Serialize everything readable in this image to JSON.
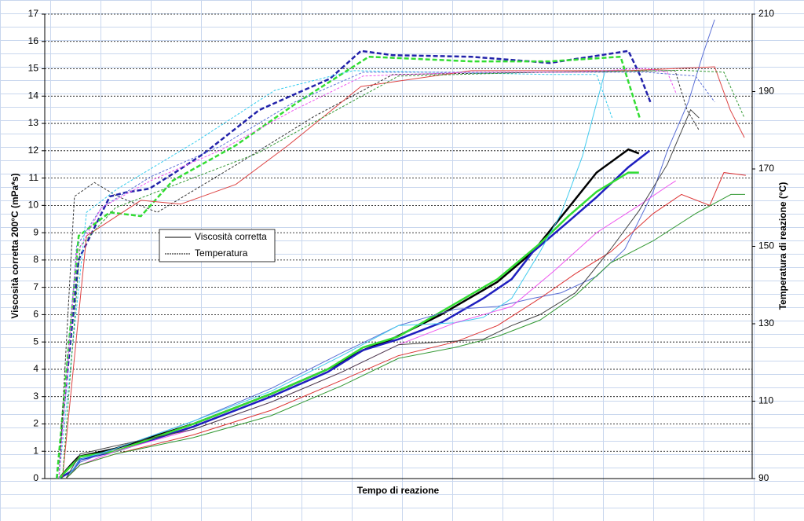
{
  "chart_data": {
    "type": "line",
    "x_label": "Tempo di reazione",
    "y_label": "Viscosità corretta 200°C (mPa*s)",
    "y2_label": "Temperatura di reazione (°C)",
    "xlim": [
      0,
      100
    ],
    "ylim": [
      0,
      17
    ],
    "yticks": [
      0,
      1,
      2,
      3,
      4,
      5,
      6,
      7,
      8,
      9,
      10,
      11,
      12,
      13,
      14,
      15,
      16,
      17
    ],
    "y2lim": [
      90,
      210
    ],
    "y2ticks": [
      90,
      110,
      130,
      150,
      170,
      190,
      210
    ],
    "grid": true,
    "legend": [
      {
        "label": "Viscosità corretta",
        "dash": false
      },
      {
        "label": "Temperatura",
        "dash": true
      }
    ],
    "series": [
      {
        "color": "#000000",
        "width": 2.5,
        "dash": false,
        "x": [
          2,
          3.7,
          4.8,
          10,
          21,
          32,
          40,
          45,
          49,
          56,
          64,
          69,
          74,
          78,
          82.5,
          84
        ],
        "values": [
          0,
          0.5,
          0.8,
          1.1,
          2.0,
          3.1,
          4.0,
          4.7,
          5.1,
          6.0,
          7.2,
          8.3,
          9.9,
          11.2,
          12.05,
          11.9
        ]
      },
      {
        "color": "#1f1fbf",
        "width": 2.5,
        "dash": false,
        "x": [
          2,
          4,
          5,
          10,
          21,
          32,
          40,
          45,
          50,
          56,
          62,
          66,
          69,
          74,
          78,
          82.5,
          85.5
        ],
        "values": [
          0,
          0.3,
          0.7,
          1.0,
          1.9,
          3.0,
          3.9,
          4.7,
          5.1,
          5.7,
          6.6,
          7.3,
          8.3,
          9.4,
          10.3,
          11.4,
          12.0
        ]
      },
      {
        "color": "#33dd33",
        "width": 2.5,
        "dash": false,
        "x": [
          2,
          3.5,
          5,
          10,
          21,
          32,
          40,
          45,
          50,
          56,
          64,
          70,
          74,
          78,
          82.5,
          84
        ],
        "values": [
          0,
          0.4,
          0.8,
          1.0,
          2.0,
          3.1,
          4.0,
          4.8,
          5.2,
          6.1,
          7.3,
          8.6,
          9.6,
          10.5,
          11.2,
          11.2
        ]
      },
      {
        "color": "#5b6fd6",
        "width": 1,
        "dash": false,
        "x": [
          3,
          5,
          10,
          21,
          32,
          42,
          50,
          58,
          64,
          69,
          73,
          78,
          82,
          86,
          88,
          91,
          93,
          94.7
        ],
        "values": [
          0,
          0.6,
          1.1,
          2.1,
          3.3,
          4.6,
          5.6,
          6.2,
          6.3,
          6.6,
          6.8,
          7.4,
          8.4,
          10.5,
          12,
          13.8,
          15.5,
          16.8
        ]
      },
      {
        "color": "#44ccee",
        "width": 1,
        "dash": false,
        "x": [
          3,
          5,
          10,
          21,
          32,
          42,
          50,
          58,
          62,
          66,
          70,
          73,
          76,
          79.2
        ],
        "values": [
          0,
          0.7,
          1.1,
          2.1,
          3.2,
          4.5,
          5.6,
          5.7,
          5.9,
          6.6,
          8.3,
          9.7,
          11.8,
          14.9
        ]
      },
      {
        "color": "#ee55ee",
        "width": 1,
        "dash": false,
        "x": [
          3,
          5,
          10,
          21,
          32,
          42,
          50,
          58,
          66,
          72,
          78,
          84,
          88,
          89.2
        ],
        "values": [
          0,
          0.5,
          1.0,
          1.8,
          2.8,
          3.9,
          4.9,
          5.7,
          6.3,
          7.6,
          9,
          10,
          10.7,
          10.9
        ]
      },
      {
        "color": "#dd3333",
        "width": 1,
        "dash": false,
        "x": [
          3,
          5,
          10,
          21,
          32,
          42,
          50,
          58,
          64,
          70,
          75,
          80,
          86,
          90,
          94,
          96,
          99.1
        ],
        "values": [
          0,
          0.5,
          0.9,
          1.6,
          2.5,
          3.6,
          4.5,
          5,
          5.6,
          6.6,
          7.5,
          8.3,
          9.7,
          10.4,
          10.0,
          11.2,
          11.1
        ]
      },
      {
        "color": "#339933",
        "width": 1,
        "dash": false,
        "x": [
          3,
          5,
          10,
          21,
          32,
          42,
          50,
          58,
          64,
          70,
          75,
          80,
          86,
          92,
          97,
          99
        ],
        "values": [
          0,
          0.5,
          0.9,
          1.5,
          2.3,
          3.4,
          4.4,
          4.8,
          5.2,
          5.8,
          6.7,
          7.9,
          8.7,
          9.7,
          10.4,
          10.4
        ]
      },
      {
        "color": "#444444",
        "width": 1,
        "dash": false,
        "x": [
          3,
          5,
          10,
          21,
          32,
          42,
          50,
          56,
          62,
          66,
          70,
          75,
          80,
          84,
          88,
          91.3,
          92.5
        ],
        "values": [
          0,
          0.9,
          1.2,
          1.8,
          2.8,
          3.9,
          4.9,
          5.0,
          5.1,
          5.6,
          6.0,
          6.8,
          8.4,
          9.8,
          11.5,
          13.5,
          13.2
        ]
      },
      {
        "color": "#2222aa",
        "width": 2.5,
        "dash": true,
        "axis": "y2",
        "x": [
          1.7,
          4.8,
          9.2,
          11.4,
          14.8,
          19.2,
          22.5,
          30.3,
          35.8,
          40.3,
          44.7,
          49.2,
          60.3,
          71.4,
          82.5,
          84.1,
          85.6
        ],
        "values": [
          90,
          146.6,
          162.9,
          163.9,
          164.9,
          170,
          174,
          185.2,
          189.7,
          193.3,
          200.5,
          199.4,
          199,
          197.4,
          200.5,
          194.4,
          187.3
        ]
      },
      {
        "color": "#33dd33",
        "width": 2.5,
        "dash": true,
        "axis": "y2",
        "x": [
          1.7,
          4.8,
          9.2,
          13.6,
          18.1,
          27,
          35.8,
          45.8,
          60.3,
          71.4,
          81.4,
          84.1
        ],
        "values": [
          90,
          152.7,
          158.8,
          157.8,
          167,
          176.1,
          187.3,
          199,
          197.8,
          197.8,
          199,
          183.2
        ]
      },
      {
        "color": "#333333",
        "width": 1,
        "dash": true,
        "axis": "y2",
        "x": [
          2,
          4.2,
          7,
          10.3,
          15.9,
          27,
          38.1,
          49.2,
          71.4,
          89.1,
          90.8,
          92.5
        ],
        "values": [
          90,
          162.9,
          166.5,
          162.9,
          158.8,
          171,
          183.6,
          194.4,
          195,
          195.4,
          185.2,
          180
        ]
      },
      {
        "color": "#33ccee",
        "width": 1,
        "dash": true,
        "axis": "y2",
        "x": [
          2,
          5.9,
          10.3,
          21.4,
          32.5,
          43.6,
          71.4,
          78,
          80.2
        ],
        "values": [
          90,
          158.8,
          164.9,
          177.1,
          190.3,
          195.4,
          194.4,
          194.4,
          183.2
        ]
      },
      {
        "color": "#dd4444",
        "width": 1,
        "dash": false,
        "axis": "y2",
        "x": [
          2.5,
          5.9,
          13.6,
          19.2,
          27,
          34.4,
          44.7,
          60.3,
          82.5,
          94.7,
          96.9,
          98.9
        ],
        "values": [
          90,
          152.7,
          161.9,
          160.9,
          166,
          176.1,
          191.3,
          195.4,
          195.4,
          196.4,
          185.2,
          178.1
        ]
      },
      {
        "color": "#339933",
        "width": 1,
        "dash": true,
        "axis": "y2",
        "x": [
          2.5,
          5,
          10,
          20,
          30,
          40,
          50,
          70,
          90,
          96,
          98.9
        ],
        "values": [
          90,
          150,
          160,
          167,
          174,
          184,
          194,
          195,
          195.5,
          195,
          183.2
        ]
      },
      {
        "color": "#5b6fd6",
        "width": 1,
        "dash": true,
        "axis": "y2",
        "x": [
          2,
          4.5,
          8,
          15,
          25,
          35,
          45,
          60,
          75,
          85,
          92,
          94.7
        ],
        "values": [
          90,
          150,
          160,
          168,
          176,
          187,
          195,
          195,
          195,
          195,
          194,
          187.3
        ]
      },
      {
        "color": "#ee55ee",
        "width": 1,
        "dash": true,
        "axis": "y2",
        "x": [
          2,
          4.5,
          8,
          15,
          25,
          35,
          45,
          60,
          75,
          85,
          88,
          89.3
        ],
        "values": [
          90,
          148,
          160,
          167,
          175,
          185,
          194,
          195,
          195,
          196,
          195,
          189.3
        ]
      }
    ]
  }
}
